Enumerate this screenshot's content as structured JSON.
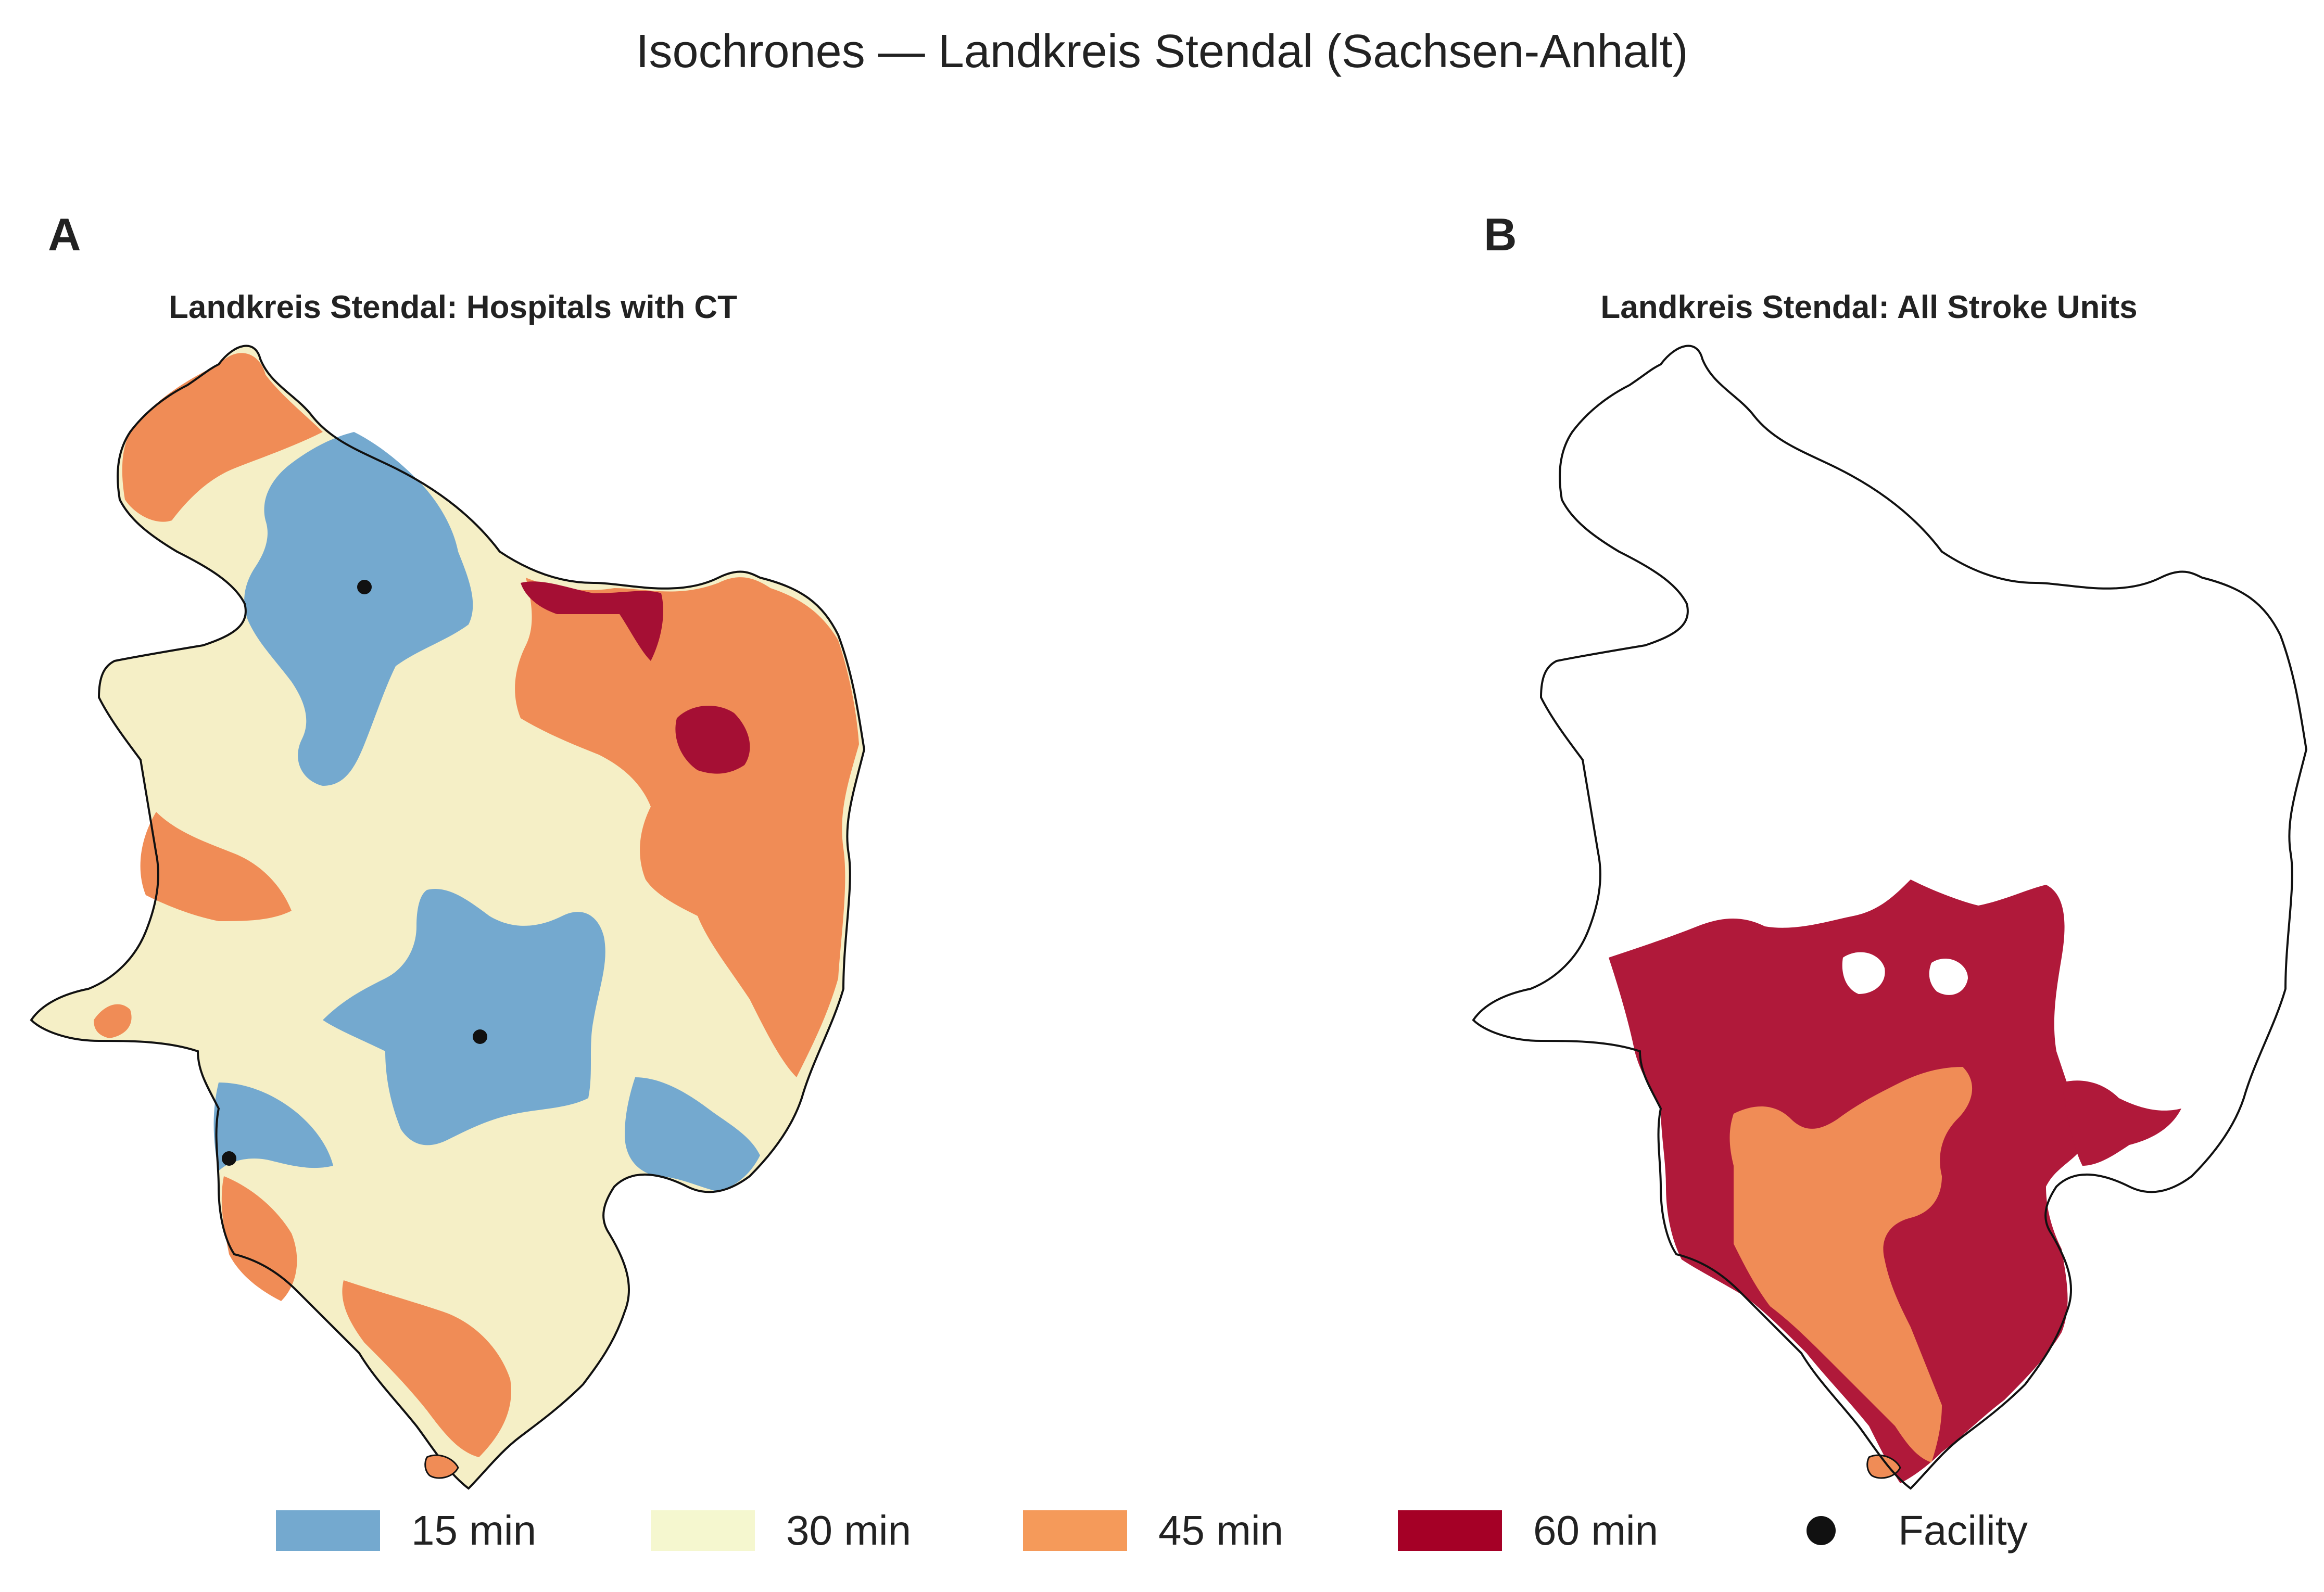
{
  "title": "Isochrones — Landkreis Stendal (Sachsen-Anhalt)",
  "colors": {
    "min15": "#74a9cf",
    "min30": "#f5efc6",
    "min45": "#f08c56",
    "min60": "#a50f34",
    "facility": "#111111",
    "outline": "#111111"
  },
  "panels": [
    {
      "letter": "A",
      "title": "Landkreis Stendal: Hospitals with CT"
    },
    {
      "letter": "B",
      "title": "Landkreis Stendal: All Stroke Units"
    }
  ],
  "legend": [
    {
      "label": "15 min",
      "color": "#74a9cf"
    },
    {
      "label": "30 min",
      "color": "#f5efc6"
    },
    {
      "label": "45 min",
      "color": "#f08c56"
    },
    {
      "label": "60 min",
      "color": "#a50f34"
    },
    {
      "label": "Facility",
      "color": "#111111",
      "marker": "dot"
    }
  ]
}
